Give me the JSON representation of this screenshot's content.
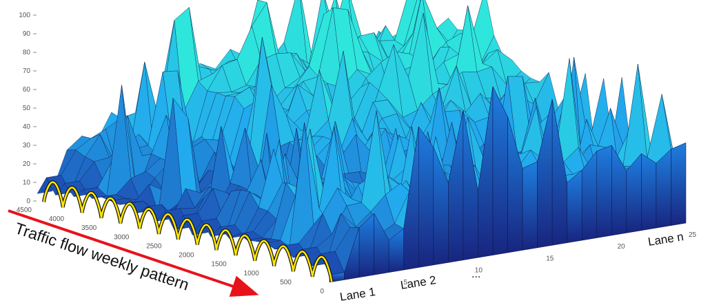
{
  "chart_data": {
    "type": "surface3d",
    "title": "",
    "z_ticks": [
      "0",
      "10",
      "20",
      "30",
      "40",
      "50",
      "60",
      "70",
      "80",
      "90",
      "100"
    ],
    "zlim": [
      0,
      100
    ],
    "time_ticks": [
      "0",
      "500",
      "1000",
      "1500",
      "2000",
      "2500",
      "3000",
      "3500",
      "4000",
      "4500"
    ],
    "time_lim": [
      0,
      4500
    ],
    "lane_ticks": [
      "5",
      "10",
      "15",
      "20",
      "25"
    ],
    "lane_lim": [
      0,
      25
    ],
    "grid": false,
    "colormap": "parula",
    "highlight_series": {
      "color": "#ffe600",
      "cycles": 15
    }
  },
  "annotations": {
    "arrow_label": "Traffic flow weekly pattern",
    "lane_1": "Lane 1",
    "lane_2": "Lane 2",
    "lane_ellipsis": "...",
    "lane_n": "Lane n"
  },
  "colors": {
    "arrow": "#e8121b",
    "highlight": "#ffe600",
    "surface_low": "#1a2fa8",
    "surface_mid": "#1f8fe6",
    "surface_high": "#29e3d8"
  }
}
